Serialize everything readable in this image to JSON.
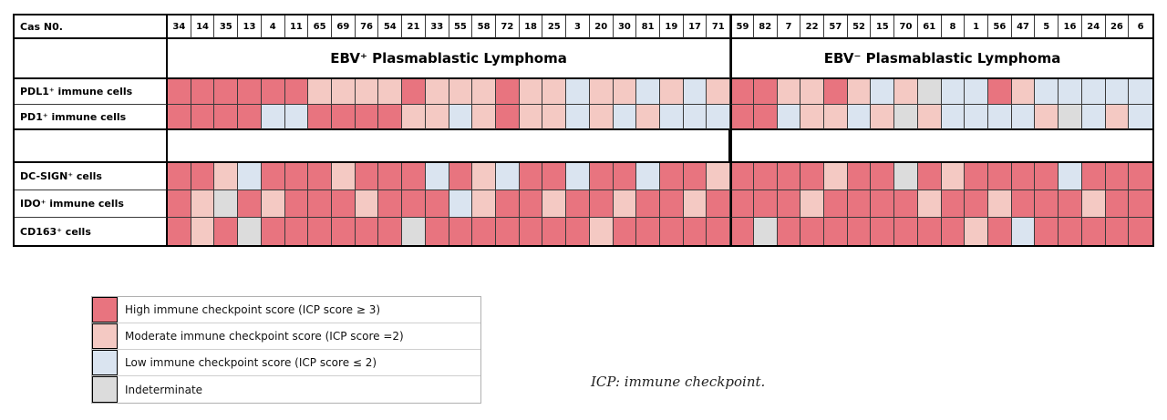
{
  "chart_data": {
    "type": "heatmap",
    "corner_label": "Cas N0.",
    "groups": [
      {
        "label": "EBV⁺ Plasmablastic Lymphoma",
        "cases": [
          34,
          14,
          35,
          13,
          4,
          11,
          65,
          69,
          76,
          54,
          21,
          33,
          55,
          58,
          72,
          18,
          25,
          3,
          20,
          30,
          81,
          19,
          17,
          71
        ]
      },
      {
        "label": "EBV⁻ Plasmablastic Lymphoma",
        "cases": [
          59,
          82,
          7,
          22,
          57,
          52,
          15,
          70,
          61,
          8,
          1,
          56,
          47,
          5,
          16,
          24,
          26,
          6
        ]
      }
    ],
    "colors": {
      "H": "#e8747f",
      "M": "#f4c9c3",
      "L": "#dae4f0",
      "I": "#dcdcdc"
    },
    "score_levels": {
      "H": "High immune checkpoint score (ICP score ≥ 3)",
      "M": "Moderate immune checkpoint score (ICP score =2)",
      "L": "Low immune checkpoint score (ICP score ≤ 2)",
      "I": "Indeterminate"
    },
    "rows": [
      {
        "label": "PDL1⁺ immune cells",
        "values": [
          "H",
          "H",
          "H",
          "H",
          "H",
          "H",
          "M",
          "M",
          "M",
          "M",
          "H",
          "M",
          "M",
          "M",
          "H",
          "M",
          "M",
          "L",
          "M",
          "M",
          "L",
          "M",
          "L",
          "M",
          "H",
          "H",
          "M",
          "M",
          "H",
          "M",
          "L",
          "M",
          "I",
          "L",
          "L",
          "H",
          "M",
          "L",
          "L",
          "L",
          "L",
          "L"
        ]
      },
      {
        "label": "PD1⁺ immune cells",
        "values": [
          "H",
          "H",
          "H",
          "H",
          "L",
          "L",
          "H",
          "H",
          "H",
          "H",
          "M",
          "M",
          "L",
          "M",
          "H",
          "M",
          "M",
          "L",
          "M",
          "L",
          "M",
          "L",
          "L",
          "L",
          "H",
          "H",
          "L",
          "M",
          "M",
          "L",
          "M",
          "I",
          "M",
          "L",
          "L",
          "L",
          "L",
          "M",
          "I",
          "L",
          "M",
          "L"
        ]
      },
      {
        "label": "DC-SIGN⁺ cells",
        "values": [
          "H",
          "H",
          "M",
          "L",
          "H",
          "H",
          "H",
          "M",
          "H",
          "H",
          "H",
          "L",
          "H",
          "M",
          "L",
          "H",
          "H",
          "L",
          "H",
          "H",
          "L",
          "H",
          "H",
          "M",
          "H",
          "H",
          "H",
          "H",
          "M",
          "H",
          "H",
          "I",
          "H",
          "M",
          "H",
          "H",
          "H",
          "H",
          "L",
          "H",
          "H",
          "H"
        ]
      },
      {
        "label": "IDO⁺ immune cells",
        "values": [
          "H",
          "M",
          "I",
          "H",
          "M",
          "H",
          "H",
          "H",
          "M",
          "H",
          "H",
          "H",
          "L",
          "M",
          "H",
          "H",
          "M",
          "H",
          "H",
          "M",
          "H",
          "H",
          "M",
          "H",
          "H",
          "H",
          "H",
          "M",
          "H",
          "H",
          "H",
          "H",
          "M",
          "H",
          "H",
          "M",
          "H",
          "H",
          "H",
          "M",
          "H",
          "H"
        ]
      },
      {
        "label": "CD163⁺  cells",
        "values": [
          "H",
          "M",
          "H",
          "I",
          "H",
          "H",
          "H",
          "H",
          "H",
          "H",
          "I",
          "H",
          "H",
          "H",
          "H",
          "H",
          "H",
          "H",
          "M",
          "H",
          "H",
          "H",
          "H",
          "H",
          "H",
          "I",
          "H",
          "H",
          "H",
          "H",
          "H",
          "H",
          "H",
          "H",
          "M",
          "H",
          "L",
          "H",
          "H",
          "H",
          "H",
          "H"
        ]
      }
    ]
  },
  "legend": {
    "items": [
      {
        "key": "H",
        "label": "High immune checkpoint score (ICP score ≥ 3)"
      },
      {
        "key": "M",
        "label": "Moderate immune checkpoint  score (ICP score =2)"
      },
      {
        "key": "L",
        "label": "Low immune checkpoint score (ICP score  ≤ 2)"
      },
      {
        "key": "I",
        "label": "Indeterminate"
      }
    ]
  },
  "note": "ICP: immune checkpoint."
}
